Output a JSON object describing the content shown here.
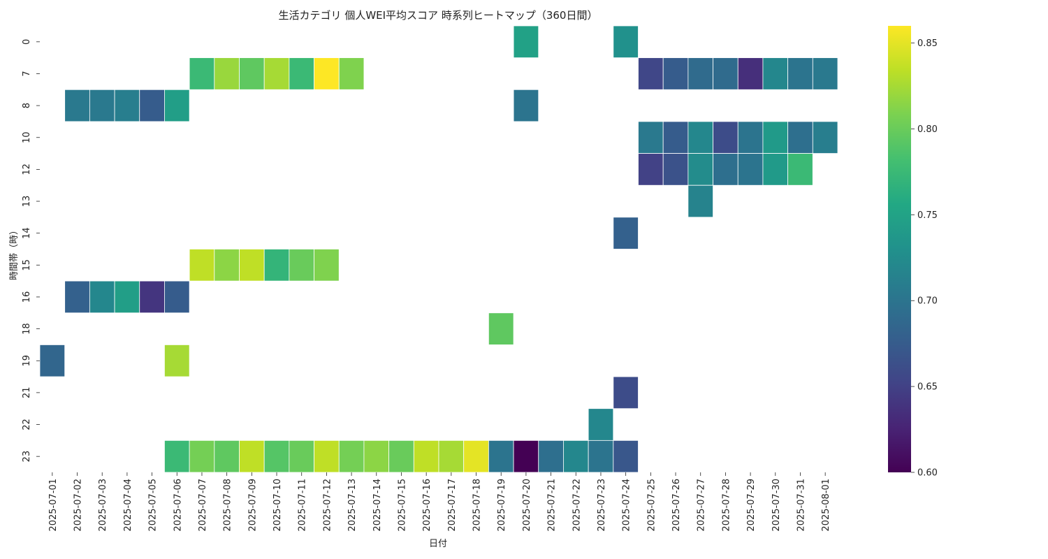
{
  "chart_data": {
    "type": "heatmap",
    "title": "生活カテゴリ 個人WEI平均スコア 時系列ヒートマップ（360日間）",
    "xlabel": "日付",
    "ylabel": "時間帯（時）",
    "colormap": "viridis",
    "colorbar_range": [
      0.6,
      0.86
    ],
    "colorbar_ticks": [
      "0.60",
      "0.65",
      "0.70",
      "0.75",
      "0.80",
      "0.85"
    ],
    "colorbar_tick_values": [
      0.6,
      0.65,
      0.7,
      0.75,
      0.8,
      0.85
    ],
    "x_categories": [
      "2025-07-01",
      "2025-07-02",
      "2025-07-03",
      "2025-07-04",
      "2025-07-05",
      "2025-07-06",
      "2025-07-07",
      "2025-07-08",
      "2025-07-09",
      "2025-07-10",
      "2025-07-11",
      "2025-07-12",
      "2025-07-13",
      "2025-07-14",
      "2025-07-15",
      "2025-07-16",
      "2025-07-17",
      "2025-07-18",
      "2025-07-19",
      "2025-07-20",
      "2025-07-21",
      "2025-07-22",
      "2025-07-23",
      "2025-07-24",
      "2025-07-25",
      "2025-07-26",
      "2025-07-27",
      "2025-07-28",
      "2025-07-29",
      "2025-07-30",
      "2025-07-31",
      "2025-08-01"
    ],
    "y_categories": [
      "0",
      "7",
      "8",
      "10",
      "12",
      "13",
      "14",
      "15",
      "16",
      "18",
      "19",
      "21",
      "22",
      "23"
    ],
    "cells": [
      {
        "x": "2025-07-20",
        "y": "0",
        "value": 0.748
      },
      {
        "x": "2025-07-24",
        "y": "0",
        "value": 0.73
      },
      {
        "x": "2025-07-07",
        "y": "7",
        "value": 0.775
      },
      {
        "x": "2025-07-08",
        "y": "7",
        "value": 0.82
      },
      {
        "x": "2025-07-09",
        "y": "7",
        "value": 0.795
      },
      {
        "x": "2025-07-10",
        "y": "7",
        "value": 0.825
      },
      {
        "x": "2025-07-11",
        "y": "7",
        "value": 0.775
      },
      {
        "x": "2025-07-12",
        "y": "7",
        "value": 0.86
      },
      {
        "x": "2025-07-13",
        "y": "7",
        "value": 0.81
      },
      {
        "x": "2025-07-25",
        "y": "7",
        "value": 0.655
      },
      {
        "x": "2025-07-26",
        "y": "7",
        "value": 0.675
      },
      {
        "x": "2025-07-27",
        "y": "7",
        "value": 0.69
      },
      {
        "x": "2025-07-28",
        "y": "7",
        "value": 0.69
      },
      {
        "x": "2025-07-29",
        "y": "7",
        "value": 0.635
      },
      {
        "x": "2025-07-30",
        "y": "7",
        "value": 0.72
      },
      {
        "x": "2025-07-31",
        "y": "7",
        "value": 0.7
      },
      {
        "x": "2025-08-01",
        "y": "7",
        "value": 0.705
      },
      {
        "x": "2025-07-02",
        "y": "8",
        "value": 0.705
      },
      {
        "x": "2025-07-03",
        "y": "8",
        "value": 0.705
      },
      {
        "x": "2025-07-04",
        "y": "8",
        "value": 0.71
      },
      {
        "x": "2025-07-05",
        "y": "8",
        "value": 0.675
      },
      {
        "x": "2025-07-06",
        "y": "8",
        "value": 0.745
      },
      {
        "x": "2025-07-20",
        "y": "8",
        "value": 0.7
      },
      {
        "x": "2025-07-25",
        "y": "10",
        "value": 0.705
      },
      {
        "x": "2025-07-26",
        "y": "10",
        "value": 0.675
      },
      {
        "x": "2025-07-27",
        "y": "10",
        "value": 0.72
      },
      {
        "x": "2025-07-28",
        "y": "10",
        "value": 0.66
      },
      {
        "x": "2025-07-29",
        "y": "10",
        "value": 0.7
      },
      {
        "x": "2025-07-30",
        "y": "10",
        "value": 0.74
      },
      {
        "x": "2025-07-31",
        "y": "10",
        "value": 0.695
      },
      {
        "x": "2025-08-01",
        "y": "10",
        "value": 0.71
      },
      {
        "x": "2025-07-25",
        "y": "12",
        "value": 0.65
      },
      {
        "x": "2025-07-26",
        "y": "12",
        "value": 0.665
      },
      {
        "x": "2025-07-27",
        "y": "12",
        "value": 0.725
      },
      {
        "x": "2025-07-28",
        "y": "12",
        "value": 0.695
      },
      {
        "x": "2025-07-29",
        "y": "12",
        "value": 0.7
      },
      {
        "x": "2025-07-30",
        "y": "12",
        "value": 0.74
      },
      {
        "x": "2025-07-31",
        "y": "12",
        "value": 0.775
      },
      {
        "x": "2025-07-27",
        "y": "13",
        "value": 0.715
      },
      {
        "x": "2025-07-24",
        "y": "14",
        "value": 0.68
      },
      {
        "x": "2025-07-07",
        "y": "15",
        "value": 0.835
      },
      {
        "x": "2025-07-08",
        "y": "15",
        "value": 0.815
      },
      {
        "x": "2025-07-09",
        "y": "15",
        "value": 0.835
      },
      {
        "x": "2025-07-10",
        "y": "15",
        "value": 0.77
      },
      {
        "x": "2025-07-11",
        "y": "15",
        "value": 0.8
      },
      {
        "x": "2025-07-12",
        "y": "15",
        "value": 0.81
      },
      {
        "x": "2025-07-02",
        "y": "16",
        "value": 0.68
      },
      {
        "x": "2025-07-03",
        "y": "16",
        "value": 0.72
      },
      {
        "x": "2025-07-04",
        "y": "16",
        "value": 0.745
      },
      {
        "x": "2025-07-05",
        "y": "16",
        "value": 0.64
      },
      {
        "x": "2025-07-06",
        "y": "16",
        "value": 0.675
      },
      {
        "x": "2025-07-19",
        "y": "18",
        "value": 0.795
      },
      {
        "x": "2025-07-01",
        "y": "19",
        "value": 0.685
      },
      {
        "x": "2025-07-06",
        "y": "19",
        "value": 0.825
      },
      {
        "x": "2025-07-24",
        "y": "21",
        "value": 0.66
      },
      {
        "x": "2025-07-23",
        "y": "22",
        "value": 0.72
      },
      {
        "x": "2025-07-06",
        "y": "23",
        "value": 0.775
      },
      {
        "x": "2025-07-07",
        "y": "23",
        "value": 0.805
      },
      {
        "x": "2025-07-08",
        "y": "23",
        "value": 0.795
      },
      {
        "x": "2025-07-09",
        "y": "23",
        "value": 0.835
      },
      {
        "x": "2025-07-10",
        "y": "23",
        "value": 0.79
      },
      {
        "x": "2025-07-11",
        "y": "23",
        "value": 0.8
      },
      {
        "x": "2025-07-12",
        "y": "23",
        "value": 0.835
      },
      {
        "x": "2025-07-13",
        "y": "23",
        "value": 0.805
      },
      {
        "x": "2025-07-14",
        "y": "23",
        "value": 0.815
      },
      {
        "x": "2025-07-15",
        "y": "23",
        "value": 0.8
      },
      {
        "x": "2025-07-16",
        "y": "23",
        "value": 0.835
      },
      {
        "x": "2025-07-17",
        "y": "23",
        "value": 0.825
      },
      {
        "x": "2025-07-18",
        "y": "23",
        "value": 0.85
      },
      {
        "x": "2025-07-19",
        "y": "23",
        "value": 0.7
      },
      {
        "x": "2025-07-20",
        "y": "23",
        "value": 0.6
      },
      {
        "x": "2025-07-21",
        "y": "23",
        "value": 0.695
      },
      {
        "x": "2025-07-22",
        "y": "23",
        "value": 0.72
      },
      {
        "x": "2025-07-23",
        "y": "23",
        "value": 0.7
      },
      {
        "x": "2025-07-24",
        "y": "23",
        "value": 0.67
      }
    ]
  }
}
